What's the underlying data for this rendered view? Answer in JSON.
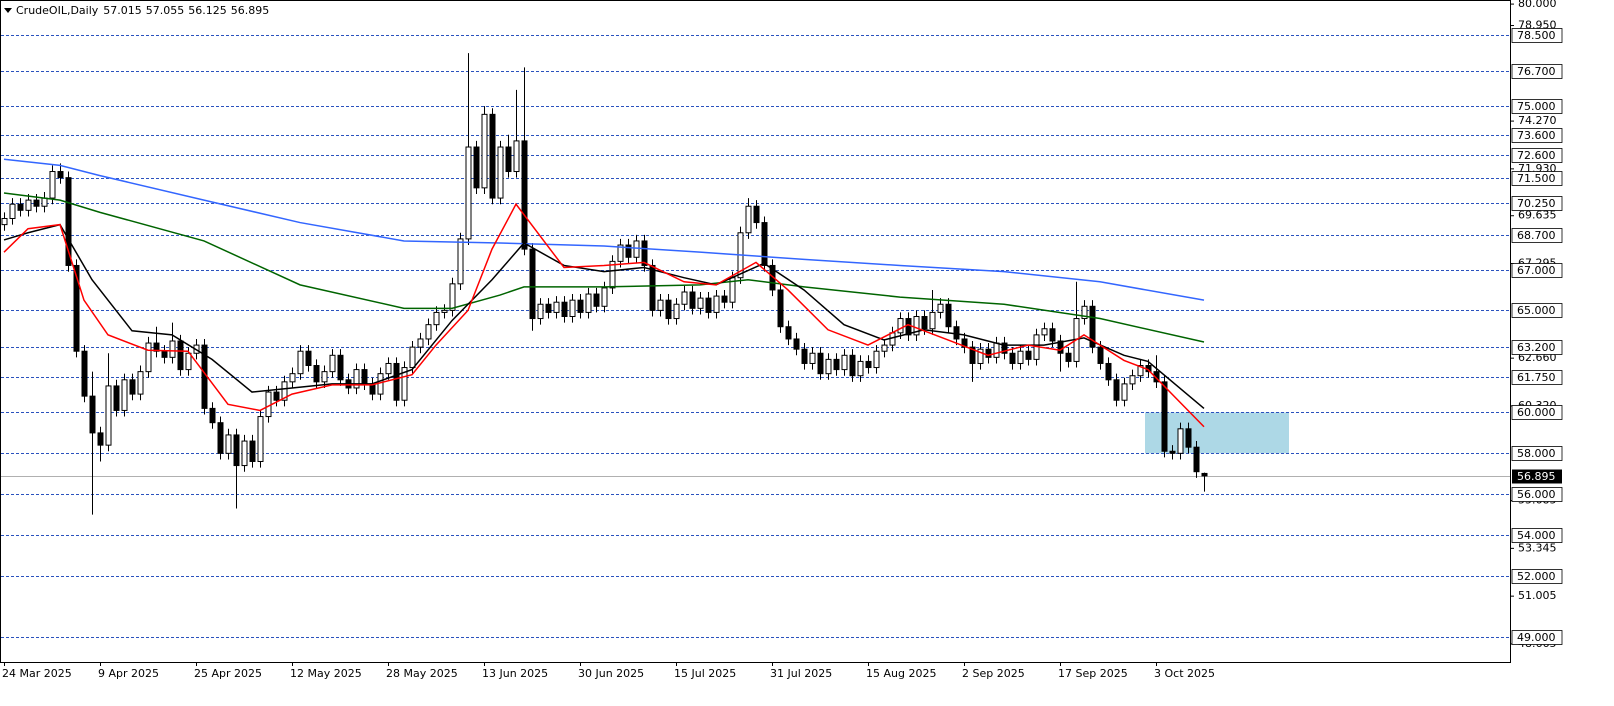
{
  "chart_data": {
    "type": "candlestick",
    "title": "CrudeOIL,Daily",
    "up_color": "#ffffff",
    "down_color": "#000000",
    "level_color": "#2a52be",
    "ylim": [
      47.78,
      80.2
    ],
    "yticks": [
      {
        "value": 80,
        "label": "80.000"
      },
      {
        "value": 78.95,
        "label": "78.950"
      },
      {
        "value": 74.27,
        "label": "74.270"
      },
      {
        "value": 71.93,
        "label": "71.930"
      },
      {
        "value": 69.635,
        "label": "69.635"
      },
      {
        "value": 67.295,
        "label": "67.295"
      },
      {
        "value": 62.66,
        "label": "62.660"
      },
      {
        "value": 60.32,
        "label": "60.320"
      },
      {
        "value": 55.685,
        "label": "55.685"
      },
      {
        "value": 53.345,
        "label": "53.345"
      },
      {
        "value": 51.005,
        "label": "51.005"
      },
      {
        "value": 48.665,
        "label": "48.665"
      }
    ],
    "levels": [
      {
        "value": 78.5,
        "label": "78.500"
      },
      {
        "value": 76.7,
        "label": "76.700"
      },
      {
        "value": 75,
        "label": "75.000"
      },
      {
        "value": 73.6,
        "label": "73.600"
      },
      {
        "value": 72.6,
        "label": "72.600"
      },
      {
        "value": 71.5,
        "label": "71.500"
      },
      {
        "value": 70.25,
        "label": "70.250"
      },
      {
        "value": 68.7,
        "label": "68.700"
      },
      {
        "value": 67,
        "label": "67.000"
      },
      {
        "value": 65,
        "label": "65.000"
      },
      {
        "value": 63.2,
        "label": "63.200"
      },
      {
        "value": 61.75,
        "label": "61.750"
      },
      {
        "value": 60,
        "label": "60.000"
      },
      {
        "value": 58,
        "label": "58.000"
      },
      {
        "value": 56,
        "label": "56.000"
      },
      {
        "value": 54,
        "label": "54.000"
      },
      {
        "value": 52,
        "label": "52.000"
      },
      {
        "value": 49,
        "label": "49.000"
      }
    ],
    "zone": {
      "low": 58,
      "high": 60,
      "x": [
        143,
        161
      ],
      "color": "#add8e6"
    },
    "categories": [
      "24 Mar 2025",
      null,
      null,
      null,
      null,
      null,
      null,
      null,
      null,
      null,
      null,
      null,
      "9 Apr 2025",
      null,
      null,
      null,
      null,
      null,
      null,
      null,
      null,
      null,
      null,
      null,
      "25 Apr 2025",
      null,
      null,
      null,
      null,
      null,
      null,
      null,
      null,
      null,
      null,
      null,
      "12 May 2025",
      null,
      null,
      null,
      null,
      null,
      null,
      null,
      null,
      null,
      null,
      null,
      "28 May 2025",
      null,
      null,
      null,
      null,
      null,
      null,
      null,
      null,
      null,
      null,
      null,
      "13 Jun 2025",
      null,
      null,
      null,
      null,
      null,
      null,
      null,
      null,
      null,
      null,
      null,
      "30 Jun 2025",
      null,
      null,
      null,
      null,
      null,
      null,
      null,
      null,
      null,
      null,
      null,
      "15 Jul 2025",
      null,
      null,
      null,
      null,
      null,
      null,
      null,
      null,
      null,
      null,
      null,
      "31 Jul 2025",
      null,
      null,
      null,
      null,
      null,
      null,
      null,
      null,
      null,
      null,
      null,
      "15 Aug 2025",
      null,
      null,
      null,
      null,
      null,
      null,
      null,
      null,
      null,
      null,
      null,
      "2 Sep 2025",
      null,
      null,
      null,
      null,
      null,
      null,
      null,
      null,
      null,
      null,
      null,
      "17 Sep 2025",
      null,
      null,
      null,
      null,
      null,
      null,
      null,
      null,
      null,
      null,
      null,
      "3 Oct 2025",
      null,
      null,
      null,
      null,
      null,
      null
    ],
    "candles": [
      [
        69.2,
        69.8,
        68.9,
        69.5
      ],
      [
        69.5,
        70.5,
        69.2,
        70.2
      ],
      [
        70.2,
        70.5,
        69.6,
        69.9
      ],
      [
        69.9,
        70.7,
        69.6,
        70.4
      ],
      [
        70.4,
        70.7,
        69.8,
        70.1
      ],
      [
        70.1,
        70.8,
        69.8,
        70.5
      ],
      [
        70.5,
        72.1,
        70.2,
        71.8
      ],
      [
        71.8,
        72.2,
        71.2,
        71.5
      ],
      [
        71.5,
        71.8,
        66.9,
        67.2
      ],
      [
        67.2,
        67.5,
        62.7,
        63.0
      ],
      [
        63.0,
        63.3,
        60.5,
        60.8
      ],
      [
        60.8,
        62.0,
        55.0,
        59.0
      ],
      [
        59.0,
        59.3,
        57.6,
        58.4
      ],
      [
        58.4,
        62.9,
        58.1,
        61.3
      ],
      [
        61.3,
        61.6,
        59.8,
        60.1
      ],
      [
        60.1,
        61.9,
        59.8,
        61.6
      ],
      [
        61.6,
        61.9,
        60.6,
        60.9
      ],
      [
        60.9,
        62.3,
        60.6,
        62.0
      ],
      [
        62.0,
        63.7,
        61.7,
        63.4
      ],
      [
        63.4,
        64.2,
        62.7,
        63.0
      ],
      [
        63.0,
        63.3,
        62.4,
        62.7
      ],
      [
        62.7,
        64.4,
        62.4,
        63.5
      ],
      [
        63.5,
        63.8,
        61.8,
        62.1
      ],
      [
        62.1,
        63.2,
        61.8,
        62.9
      ],
      [
        62.9,
        63.6,
        62.6,
        63.3
      ],
      [
        63.3,
        63.6,
        59.9,
        60.2
      ],
      [
        60.2,
        60.5,
        59.2,
        59.5
      ],
      [
        59.5,
        59.8,
        57.7,
        58.0
      ],
      [
        58.0,
        59.2,
        57.7,
        58.9
      ],
      [
        58.9,
        59.2,
        55.3,
        57.4
      ],
      [
        57.4,
        58.9,
        57.1,
        58.6
      ],
      [
        58.6,
        58.9,
        57.3,
        57.6
      ],
      [
        57.6,
        60.1,
        57.3,
        59.8
      ],
      [
        59.8,
        61.3,
        59.5,
        61.0
      ],
      [
        61.0,
        61.3,
        60.3,
        60.6
      ],
      [
        60.6,
        61.8,
        60.3,
        61.5
      ],
      [
        61.5,
        62.2,
        61.2,
        61.9
      ],
      [
        61.9,
        63.3,
        61.6,
        63.0
      ],
      [
        63.0,
        63.3,
        62.0,
        62.3
      ],
      [
        62.3,
        62.6,
        61.2,
        61.5
      ],
      [
        61.5,
        62.3,
        61.2,
        62.0
      ],
      [
        62.0,
        63.1,
        61.7,
        62.8
      ],
      [
        62.8,
        63.1,
        61.3,
        61.6
      ],
      [
        61.6,
        61.9,
        60.9,
        61.2
      ],
      [
        61.2,
        62.4,
        60.9,
        62.1
      ],
      [
        62.1,
        62.4,
        61.1,
        61.4
      ],
      [
        61.4,
        61.7,
        60.6,
        60.9
      ],
      [
        60.9,
        62.2,
        60.6,
        61.9
      ],
      [
        61.9,
        62.7,
        61.6,
        62.4
      ],
      [
        62.4,
        62.7,
        60.3,
        60.6
      ],
      [
        60.6,
        62.5,
        60.3,
        62.2
      ],
      [
        62.2,
        63.5,
        61.9,
        63.2
      ],
      [
        63.2,
        63.9,
        62.9,
        63.6
      ],
      [
        63.6,
        64.6,
        63.3,
        64.3
      ],
      [
        64.3,
        65.2,
        64.0,
        64.9
      ],
      [
        64.9,
        65.3,
        64.6,
        65.0
      ],
      [
        65.0,
        66.6,
        64.7,
        66.3
      ],
      [
        66.3,
        68.8,
        66.0,
        68.5
      ],
      [
        68.5,
        77.6,
        68.2,
        73.0
      ],
      [
        73.0,
        73.3,
        70.7,
        71.0
      ],
      [
        71.0,
        75.0,
        70.7,
        74.6
      ],
      [
        74.6,
        74.9,
        70.2,
        70.5
      ],
      [
        70.5,
        73.3,
        70.2,
        73.0
      ],
      [
        73.0,
        73.6,
        71.5,
        71.8
      ],
      [
        71.8,
        75.8,
        71.5,
        73.3
      ],
      [
        73.3,
        76.9,
        67.7,
        68.0
      ],
      [
        68.0,
        68.3,
        64.0,
        64.6
      ],
      [
        64.6,
        65.6,
        64.3,
        65.3
      ],
      [
        65.3,
        65.6,
        64.6,
        64.9
      ],
      [
        64.9,
        65.7,
        64.6,
        65.4
      ],
      [
        65.4,
        65.7,
        64.4,
        64.7
      ],
      [
        64.7,
        65.8,
        64.4,
        65.5
      ],
      [
        65.5,
        65.8,
        64.6,
        64.9
      ],
      [
        64.9,
        66.1,
        64.6,
        65.8
      ],
      [
        65.8,
        66.1,
        64.9,
        65.2
      ],
      [
        65.2,
        66.4,
        64.9,
        66.1
      ],
      [
        66.1,
        67.7,
        65.8,
        67.4
      ],
      [
        67.4,
        68.5,
        67.1,
        68.2
      ],
      [
        68.2,
        68.5,
        67.3,
        67.6
      ],
      [
        67.6,
        68.7,
        67.3,
        68.4
      ],
      [
        68.4,
        68.7,
        66.9,
        67.2
      ],
      [
        67.2,
        67.5,
        64.7,
        65.0
      ],
      [
        65.0,
        65.8,
        64.7,
        65.5
      ],
      [
        65.5,
        65.8,
        64.3,
        64.6
      ],
      [
        64.6,
        65.6,
        64.3,
        65.3
      ],
      [
        65.3,
        66.2,
        65.0,
        65.9
      ],
      [
        65.9,
        66.2,
        64.8,
        65.1
      ],
      [
        65.1,
        65.9,
        64.8,
        65.6
      ],
      [
        65.6,
        65.9,
        64.6,
        64.9
      ],
      [
        64.9,
        66.0,
        64.6,
        65.7
      ],
      [
        65.7,
        66.0,
        65.1,
        65.4
      ],
      [
        65.4,
        66.9,
        65.1,
        66.6
      ],
      [
        66.6,
        69.1,
        66.3,
        68.8
      ],
      [
        68.8,
        70.5,
        68.5,
        70.1
      ],
      [
        70.1,
        70.4,
        69.0,
        69.3
      ],
      [
        69.3,
        69.6,
        66.9,
        67.2
      ],
      [
        67.2,
        67.5,
        65.7,
        66.0
      ],
      [
        66.0,
        66.3,
        63.9,
        64.2
      ],
      [
        64.2,
        64.5,
        63.3,
        63.6
      ],
      [
        63.6,
        63.9,
        62.8,
        63.1
      ],
      [
        63.1,
        63.4,
        62.1,
        62.4
      ],
      [
        62.4,
        63.2,
        62.1,
        62.9
      ],
      [
        62.9,
        63.2,
        61.6,
        61.9
      ],
      [
        61.9,
        62.9,
        61.6,
        62.6
      ],
      [
        62.6,
        62.9,
        61.8,
        62.1
      ],
      [
        62.1,
        63.1,
        61.8,
        62.8
      ],
      [
        62.8,
        63.1,
        61.5,
        61.8
      ],
      [
        61.8,
        62.8,
        61.5,
        62.5
      ],
      [
        62.5,
        62.8,
        61.9,
        62.2
      ],
      [
        62.2,
        63.3,
        61.9,
        63.0
      ],
      [
        63.0,
        63.6,
        62.7,
        63.3
      ],
      [
        63.3,
        64.2,
        63.0,
        63.9
      ],
      [
        63.9,
        64.9,
        63.6,
        64.6
      ],
      [
        64.6,
        64.9,
        63.5,
        63.8
      ],
      [
        63.8,
        65.0,
        63.5,
        64.7
      ],
      [
        64.7,
        65.0,
        63.8,
        64.1
      ],
      [
        64.1,
        66.0,
        63.8,
        64.9
      ],
      [
        64.9,
        65.6,
        64.6,
        65.3
      ],
      [
        65.3,
        65.6,
        63.9,
        64.2
      ],
      [
        64.2,
        64.5,
        63.3,
        63.6
      ],
      [
        63.6,
        63.9,
        62.9,
        63.2
      ],
      [
        63.2,
        63.5,
        61.5,
        62.4
      ],
      [
        62.4,
        63.4,
        62.1,
        63.1
      ],
      [
        63.1,
        63.4,
        62.4,
        62.7
      ],
      [
        62.7,
        63.7,
        62.4,
        63.4
      ],
      [
        63.4,
        63.7,
        62.6,
        62.9
      ],
      [
        62.9,
        63.2,
        62.1,
        62.4
      ],
      [
        62.4,
        63.3,
        62.1,
        63.0
      ],
      [
        63.0,
        63.3,
        62.3,
        62.6
      ],
      [
        62.6,
        64.1,
        62.3,
        63.8
      ],
      [
        63.8,
        64.4,
        63.5,
        64.1
      ],
      [
        64.1,
        64.4,
        63.2,
        63.5
      ],
      [
        63.5,
        63.8,
        62.0,
        62.9
      ],
      [
        62.9,
        63.2,
        62.2,
        62.5
      ],
      [
        62.5,
        66.4,
        62.2,
        64.6
      ],
      [
        64.6,
        65.5,
        64.3,
        65.2
      ],
      [
        65.2,
        65.5,
        62.9,
        63.2
      ],
      [
        63.2,
        63.5,
        62.1,
        62.4
      ],
      [
        62.4,
        62.7,
        61.3,
        61.6
      ],
      [
        61.6,
        61.9,
        60.3,
        60.6
      ],
      [
        60.6,
        61.7,
        60.3,
        61.4
      ],
      [
        61.4,
        62.1,
        61.1,
        61.8
      ],
      [
        61.8,
        62.6,
        61.5,
        62.3
      ],
      [
        62.3,
        62.6,
        61.7,
        62.0
      ],
      [
        62.0,
        62.8,
        61.2,
        61.5
      ],
      [
        61.5,
        61.8,
        57.8,
        58.1
      ],
      [
        58.1,
        58.4,
        57.7,
        58.0
      ],
      [
        58.0,
        59.5,
        57.7,
        59.2
      ],
      [
        59.2,
        59.5,
        58.0,
        58.3
      ],
      [
        58.3,
        58.6,
        56.8,
        57.1
      ],
      [
        57.015,
        57.055,
        56.125,
        56.895
      ]
    ],
    "series": [
      {
        "color": "#3366ff",
        "x": [
          0,
          7,
          12,
          25,
          37,
          50,
          62,
          75,
          87,
          100,
          112,
          125,
          137,
          150
        ],
        "values": [
          72.4,
          72.1,
          71.6,
          70.4,
          69.3,
          68.4,
          68.3,
          68.15,
          67.85,
          67.5,
          67.2,
          66.9,
          66.4,
          65.5
        ]
      },
      {
        "color": "#006400",
        "x": [
          0,
          7,
          12,
          25,
          37,
          50,
          56,
          62,
          65,
          75,
          87,
          93,
          100,
          112,
          125,
          137,
          150
        ],
        "values": [
          70.75,
          70.4,
          69.8,
          68.4,
          66.25,
          65.1,
          65.1,
          65.75,
          66.15,
          66.15,
          66.25,
          66.5,
          66.15,
          65.65,
          65.3,
          64.6,
          63.45
        ]
      },
      {
        "color": "#000000",
        "x": [
          0,
          3,
          7,
          11,
          16,
          21,
          26,
          31,
          36,
          41,
          46,
          51,
          56,
          61,
          65,
          70,
          75,
          80,
          85,
          89,
          95,
          100,
          105,
          110,
          115,
          120,
          125,
          130,
          135,
          140,
          143,
          150
        ],
        "values": [
          68.45,
          68.8,
          69.2,
          66.5,
          64.0,
          63.8,
          62.6,
          61.0,
          61.2,
          61.4,
          61.4,
          62.1,
          64.5,
          66.5,
          68.3,
          67.2,
          66.9,
          67.1,
          66.6,
          66.25,
          67.3,
          66.0,
          64.3,
          63.55,
          64.05,
          63.8,
          63.3,
          63.3,
          63.65,
          62.8,
          62.5,
          60.2
        ]
      },
      {
        "color": "#ff0000",
        "x": [
          0,
          3,
          7,
          10,
          13,
          18,
          23,
          28,
          32,
          36,
          41,
          46,
          51,
          54,
          58,
          61,
          64,
          70,
          75,
          80,
          85,
          89,
          94,
          98,
          103,
          108,
          113,
          118,
          123,
          128,
          132,
          135,
          140,
          143,
          150
        ],
        "values": [
          67.85,
          69.0,
          69.2,
          65.5,
          63.8,
          63.05,
          63.0,
          60.4,
          60.1,
          60.9,
          61.35,
          61.35,
          61.85,
          63.3,
          65.0,
          68.0,
          70.2,
          67.1,
          67.2,
          67.35,
          66.4,
          66.25,
          67.35,
          66.0,
          64.05,
          63.3,
          64.3,
          63.55,
          62.8,
          63.3,
          63.05,
          63.8,
          62.55,
          62.1,
          59.3
        ]
      }
    ]
  }
}
